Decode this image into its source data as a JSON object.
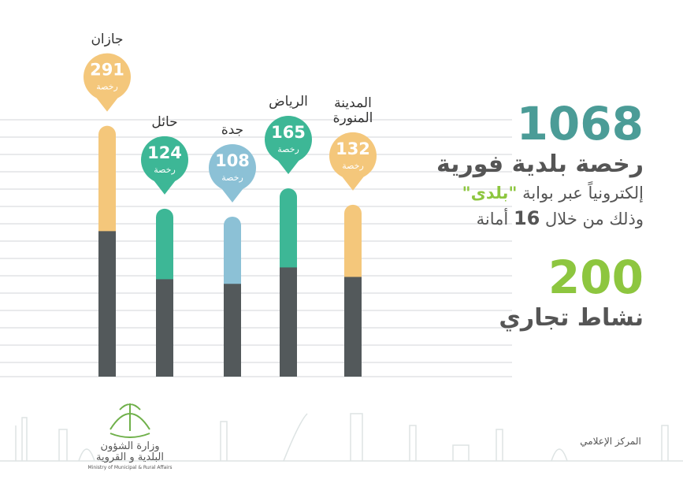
{
  "chart_data": {
    "type": "bar",
    "categories": [
      "جازان",
      "حائل",
      "جدة",
      "الرياض",
      "المدينة المنورة"
    ],
    "values": [
      291,
      124,
      108,
      165,
      132
    ],
    "unit_label": "رخصة",
    "colors": [
      "#f4c77b",
      "#3db796",
      "#8cc1d6",
      "#3db796",
      "#f4c77b"
    ],
    "base_color": "#53595b"
  },
  "summary": {
    "total": 1068,
    "total_label": "رخصة بلدية فورية",
    "line2": [
      "إلكترونياً عبر بوابة",
      "\"بلدى\""
    ],
    "line3": [
      "وذلك من خلال",
      "16",
      "أمانة"
    ],
    "activities": 200,
    "activities_label": "نشاط تجاري"
  },
  "footer": {
    "ministry": "وزارة الشؤون البلدية و القروية",
    "ministry_en": "Ministry of Municipal & Rural Affairs",
    "media": "المركز الإعلامي"
  }
}
